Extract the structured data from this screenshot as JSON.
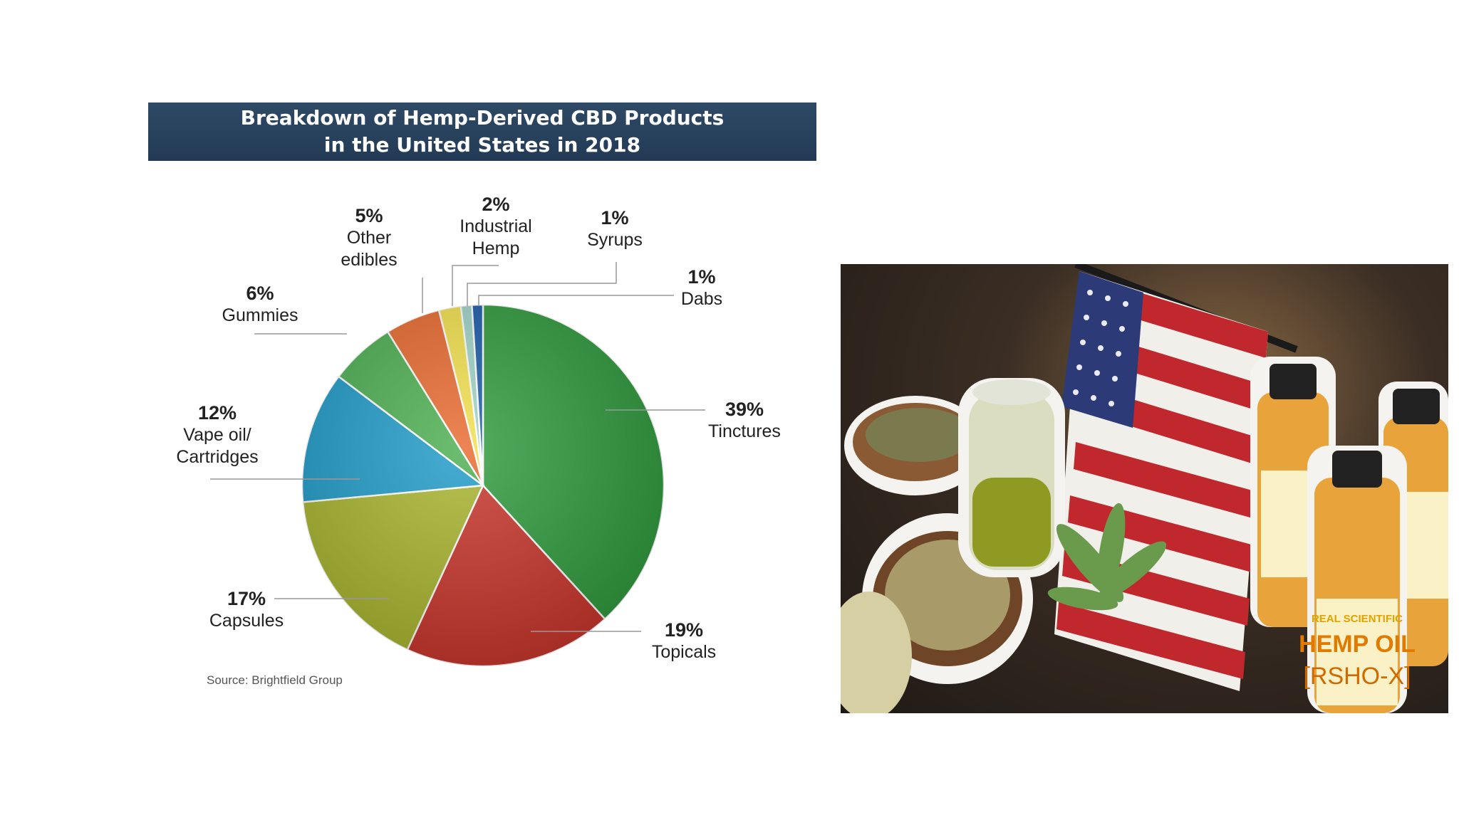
{
  "chart_data": {
    "type": "pie",
    "title": [
      "Breakdown of Hemp-Derived CBD Products",
      "in the United States in 2018"
    ],
    "source": "Source: Brightfield Group",
    "slices": [
      {
        "name": "Tinctures",
        "value": 39,
        "label": "39%",
        "color": "#2e9a3c"
      },
      {
        "name": "Topicals",
        "value": 19,
        "label": "19%",
        "color": "#c8342a"
      },
      {
        "name": "Capsules",
        "value": 17,
        "label": "17%",
        "color": "#a9b52e"
      },
      {
        "name": "Vape oil/ Cartridges",
        "value": 12,
        "label": "12%",
        "color": "#1f9bc8"
      },
      {
        "name": "Gummies",
        "value": 6,
        "label": "6%",
        "color": "#4caf50"
      },
      {
        "name": "Other edibles",
        "value": 5,
        "label": "5%",
        "color": "#e8692e"
      },
      {
        "name": "Industrial Hemp",
        "value": 2,
        "label": "2%",
        "color": "#f2e14c"
      },
      {
        "name": "Syrups",
        "value": 1,
        "label": "1%",
        "color": "#9fd3c7"
      },
      {
        "name": "Dabs",
        "value": 1,
        "label": "1%",
        "color": "#1a5aa8"
      }
    ]
  },
  "labels": {
    "tinctures": {
      "pct": "39%",
      "name": "Tinctures"
    },
    "topicals": {
      "pct": "19%",
      "name": "Topicals"
    },
    "capsules": {
      "pct": "17%",
      "name": "Capsules"
    },
    "vape": {
      "pct": "12%",
      "name1": "Vape oil/",
      "name2": "Cartridges"
    },
    "gummies": {
      "pct": "6%",
      "name": "Gummies"
    },
    "other_edibles": {
      "pct": "5%",
      "name1": "Other",
      "name2": "edibles"
    },
    "industrial_hemp": {
      "pct": "2%",
      "name1": "Industrial",
      "name2": "Hemp"
    },
    "syrups": {
      "pct": "1%",
      "name": "Syrups"
    },
    "dabs": {
      "pct": "1%",
      "name": "Dabs"
    }
  },
  "photo": {
    "bottle_label_brand": "REAL SCIENTIFIC",
    "bottle_label_product": "HEMP OIL",
    "bottle_label_variant": "[RSHO-X]"
  }
}
